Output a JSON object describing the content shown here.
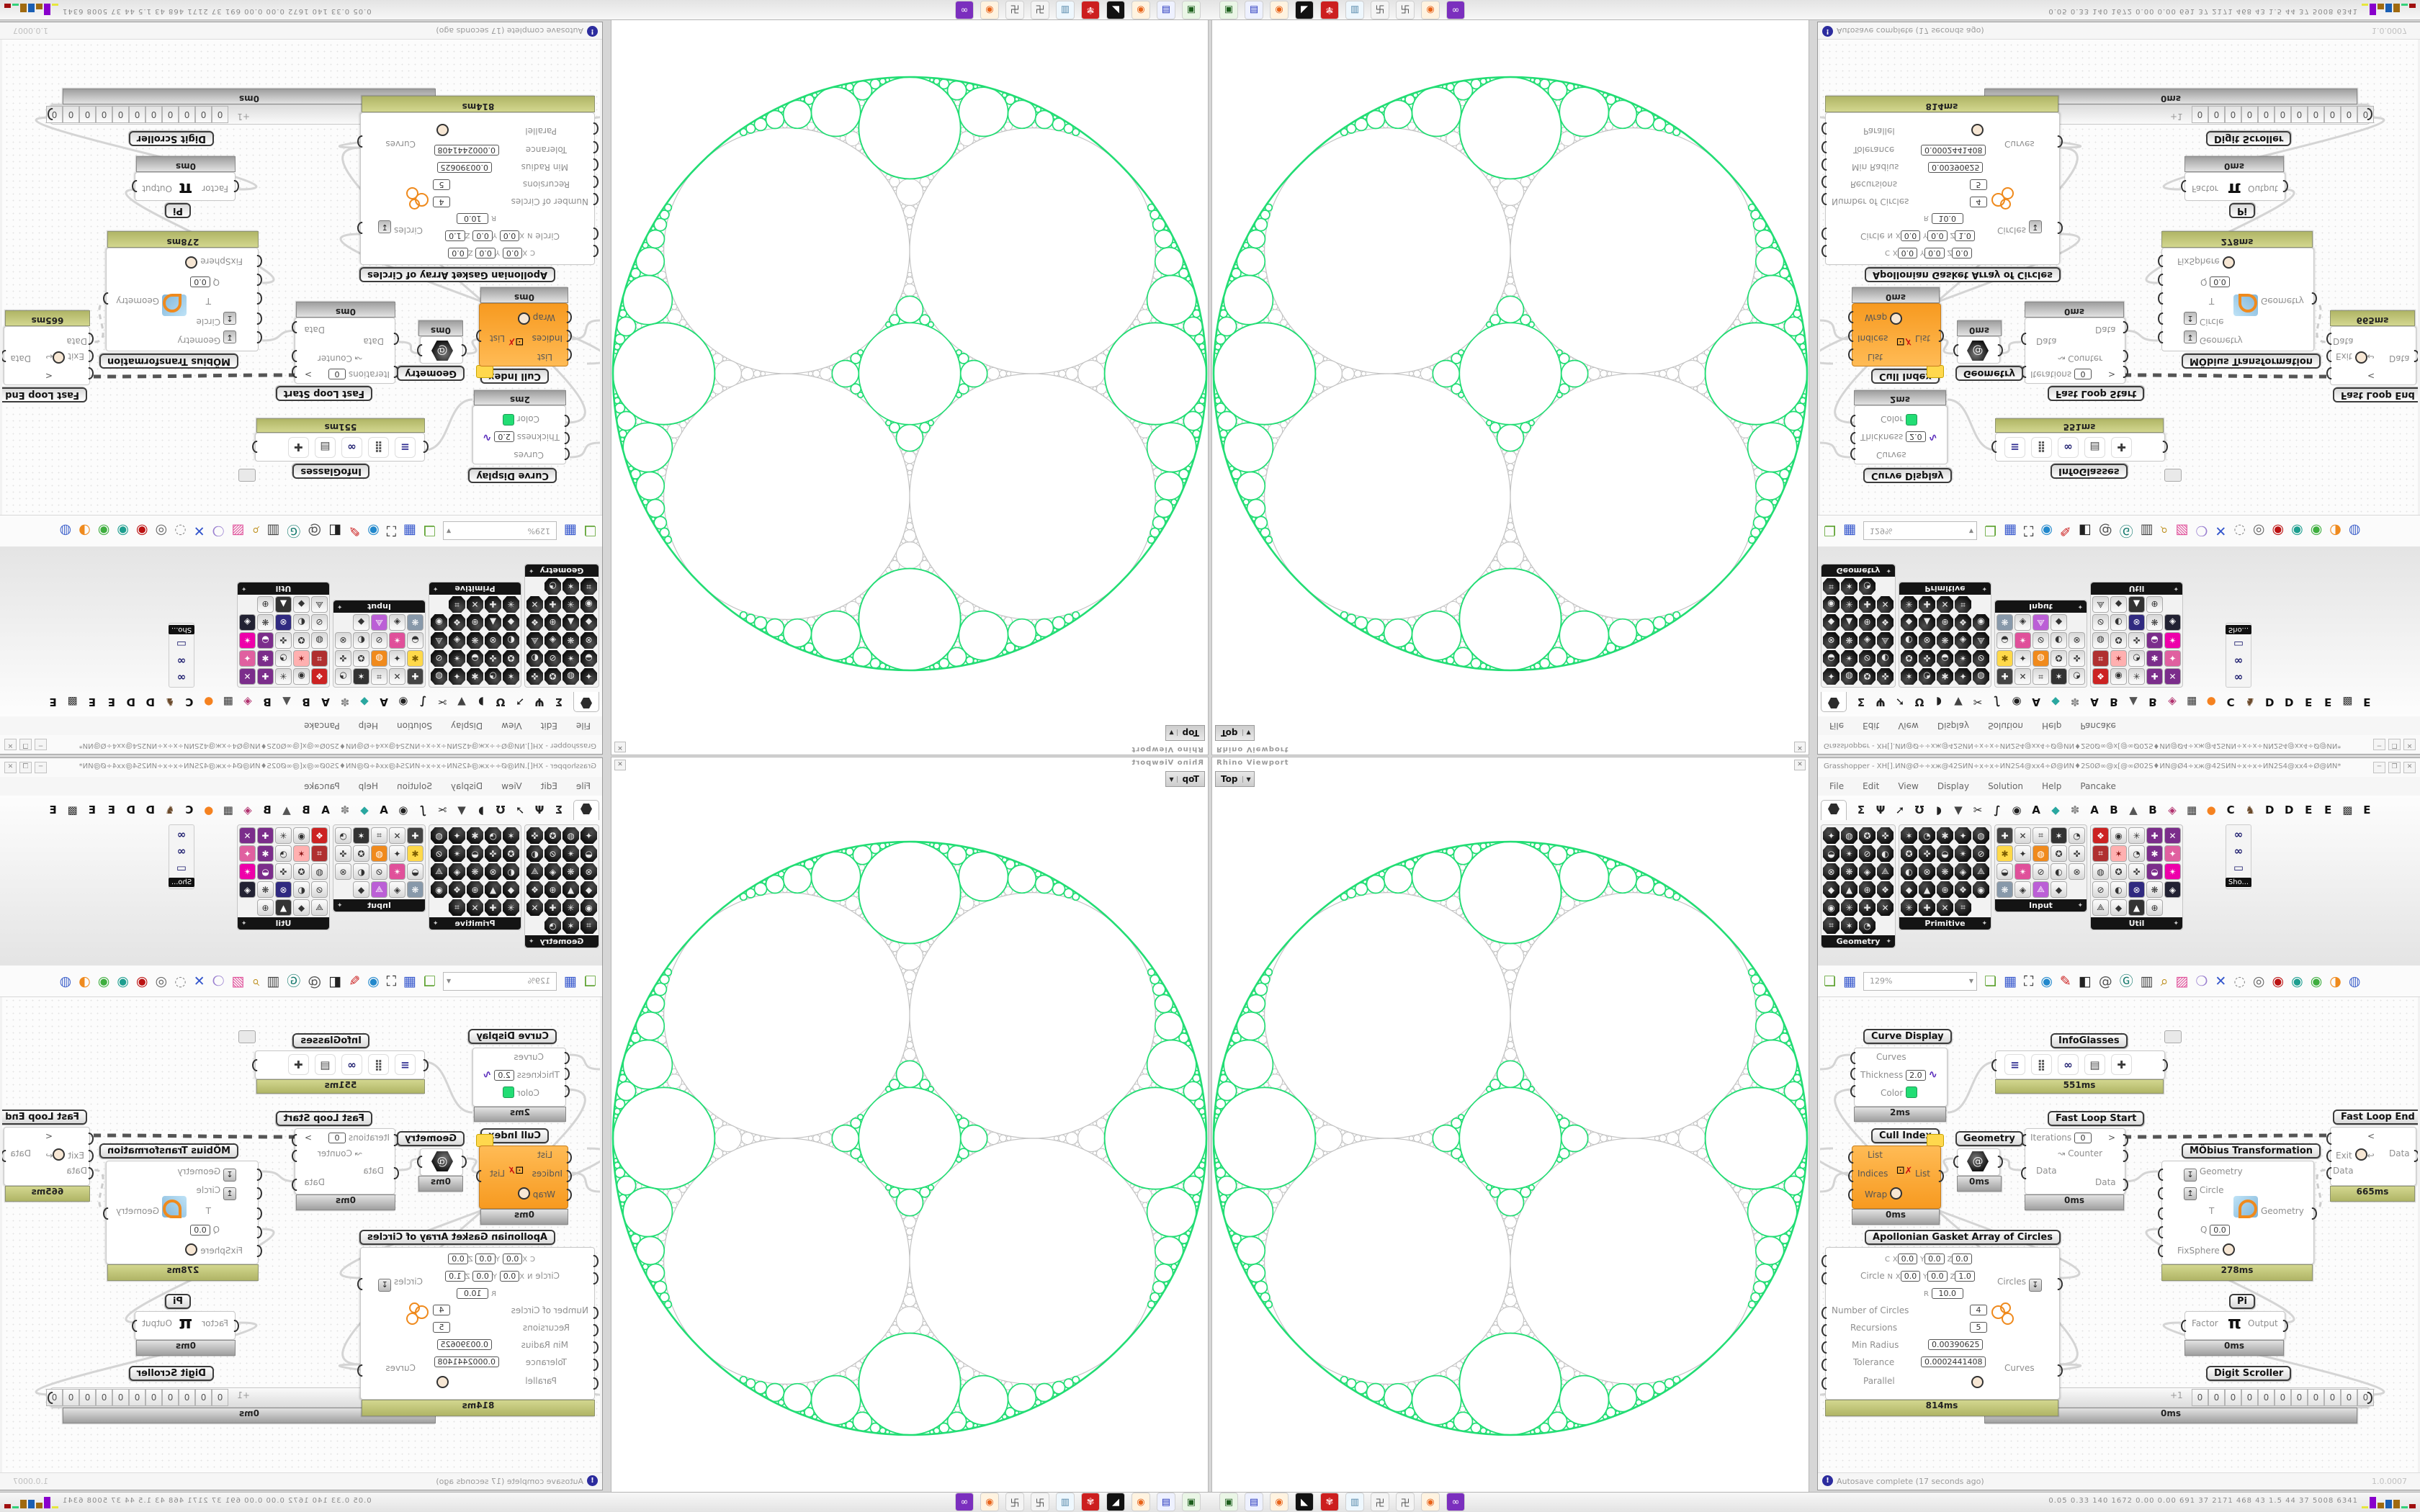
{
  "taskbar": {
    "icons": [
      {
        "name": "emulator",
        "glyph": "▣",
        "bg": "#eaf6e6",
        "fg": "#1c5f1c"
      },
      {
        "name": "save-floppy",
        "glyph": "▤",
        "bg": "#eef1ff",
        "fg": "#2233bb"
      },
      {
        "name": "firefox",
        "glyph": "◉",
        "bg": "#fff3e0",
        "fg": "#e8641a"
      },
      {
        "name": "inkcat",
        "glyph": "◣",
        "bg": "#111111",
        "fg": "#ffffff"
      },
      {
        "name": "gear-red",
        "glyph": "✾",
        "bg": "#cc1f1f",
        "fg": "#ffdddd"
      },
      {
        "name": "notepad",
        "glyph": "▥",
        "bg": "#eef7fd",
        "fg": "#5588aa"
      },
      {
        "name": "maze-1",
        "glyph": "卍",
        "bg": "#f4f4f4",
        "fg": "#555555"
      },
      {
        "name": "maze-2",
        "glyph": "卍",
        "bg": "#f4f4f4",
        "fg": "#555555"
      },
      {
        "name": "firefox-2",
        "glyph": "◉",
        "bg": "#fff3e0",
        "fg": "#e8641a"
      },
      {
        "name": "goggles-purple",
        "glyph": "∞",
        "bg": "#7b2fbe",
        "fg": "#ffffff"
      }
    ],
    "stats": "0.05 0.33  140  1672 0.00  0.00  691   37   2171  468   43   1.5   44   37   5008 6341",
    "graphs": [
      {
        "color": "#e6e63c",
        "h": 3
      },
      {
        "color": "#8800cc",
        "h": 16
      },
      {
        "color": "#a06a10",
        "h": 8
      },
      {
        "color": "#1a5fb4",
        "h": 12
      },
      {
        "color": "#a06a10",
        "h": 12
      },
      {
        "color": "#33d17a",
        "h": 3
      },
      {
        "color": "#a01010",
        "h": 6
      }
    ]
  },
  "rhino": {
    "title": "Rhino Viewport",
    "view_tab": "Top",
    "dropdown": "▼",
    "close": "✕"
  },
  "gasket": {
    "ring_count": 4,
    "recursions": 5,
    "green": "#22dd74",
    "gray": "#c4c4c4"
  },
  "gh": {
    "title": "Grasshopper - XH[].ИN@Ø÷÷хж@42SИN÷х÷х÷ИN2S4@хх4÷Ø@ИN♦2S0Ø∞@х[@∞Ø02S♦ИN@Ø4÷хж@42SИN÷х÷х÷ИN2S4@хх4÷Ø@ИN*",
    "buttons": {
      "minimize": "─",
      "maximize": "❐",
      "close": "✕"
    },
    "menu": [
      "File",
      "Edit",
      "View",
      "Display",
      "Solution",
      "Help",
      "Pancake"
    ],
    "tabs": [
      {
        "glyph": "",
        "color": "#222",
        "selected": true,
        "name": "params"
      },
      {
        "glyph": "Σ",
        "color": "#222"
      },
      {
        "glyph": "Ψ",
        "color": "#222"
      },
      {
        "glyph": "➚",
        "color": "#222"
      },
      {
        "glyph": "Ʊ",
        "color": "#222"
      },
      {
        "glyph": "◗",
        "color": "#222"
      },
      {
        "glyph": "▼",
        "color": "#444"
      },
      {
        "glyph": "✂",
        "color": "#222"
      },
      {
        "glyph": "∫",
        "color": "#222"
      },
      {
        "glyph": "◉",
        "color": "#222"
      },
      {
        "glyph": "A",
        "color": "#111"
      },
      {
        "glyph": "◆",
        "color": "#2aa7a0"
      },
      {
        "glyph": "✽",
        "color": "#888"
      },
      {
        "glyph": "A",
        "color": "#111"
      },
      {
        "glyph": "B",
        "color": "#111"
      },
      {
        "glyph": "▲",
        "color": "#555"
      },
      {
        "glyph": "B",
        "color": "#111"
      },
      {
        "glyph": "◈",
        "color": "#b0306e"
      },
      {
        "glyph": "▦",
        "color": "#333"
      },
      {
        "glyph": "●",
        "color": "#f58220"
      },
      {
        "glyph": "C",
        "color": "#111"
      },
      {
        "glyph": "♞",
        "color": "#6b4a2b"
      },
      {
        "glyph": "D",
        "color": "#111"
      },
      {
        "glyph": "D",
        "color": "#111"
      },
      {
        "glyph": "E",
        "color": "#111"
      },
      {
        "glyph": "E",
        "color": "#111"
      },
      {
        "glyph": "▩",
        "color": "#333"
      },
      {
        "glyph": "E",
        "color": "#111"
      }
    ],
    "palettes": [
      {
        "name": "Geometry",
        "cols": 4,
        "count": 23,
        "style": "dark",
        "accents": []
      },
      {
        "name": "Primitive",
        "cols": 5,
        "count": 24,
        "style": "dark",
        "accents": []
      },
      {
        "name": "Input",
        "cols": 5,
        "count": 19,
        "style": "light",
        "accents": [
          [
            0,
            "#444",
            "#fff"
          ],
          [
            3,
            "#333",
            "#fff"
          ],
          [
            5,
            "#ffd94a",
            "#7a5a00"
          ],
          [
            7,
            "#f08a1d",
            "#fff"
          ],
          [
            11,
            "#e0509a",
            "#fff"
          ],
          [
            15,
            "#8899aa",
            "#fff"
          ],
          [
            17,
            "#bb5fd6",
            "#fff"
          ]
        ]
      },
      {
        "name": "Util",
        "cols": 5,
        "count": 24,
        "style": "light",
        "accents": [
          [
            0,
            "#cc2222",
            "#fff"
          ],
          [
            3,
            "#7b2d8b",
            "#fff"
          ],
          [
            4,
            "#7b2d8b",
            "#fff"
          ],
          [
            5,
            "#b03030",
            "#fff"
          ],
          [
            6,
            "#ffb0b0",
            "#881111"
          ],
          [
            8,
            "#7b2d8b",
            "#fff"
          ],
          [
            9,
            "#e060a0",
            "#fff"
          ],
          [
            13,
            "#7b2d8b",
            "#fff"
          ],
          [
            14,
            "#e0a",
            " #fff"
          ],
          [
            17,
            "#302a80",
            "#fff"
          ],
          [
            19,
            "#223",
            "#fff"
          ],
          [
            22,
            "#333",
            "#fff"
          ]
        ]
      }
    ],
    "sho": {
      "label": "Sho...",
      "icons": [
        "∞",
        "∞",
        "▭"
      ]
    },
    "toolbar": {
      "zoom": "129%",
      "icons": [
        {
          "name": "open-folder",
          "glyph": "❏",
          "color": "#5aa02c"
        },
        {
          "name": "save-file",
          "glyph": "▦",
          "color": "#3355cc"
        },
        {
          "name": "zoom-extents",
          "glyph": "⛶",
          "color": "#222222"
        },
        {
          "name": "preview-eye",
          "glyph": "◉",
          "color": "#2288cc"
        },
        {
          "name": "sketch-pen",
          "glyph": "✎",
          "color": "#cc2222"
        },
        {
          "name": "box-display",
          "glyph": "◧",
          "color": "#222222"
        },
        {
          "name": "at-link",
          "glyph": "@",
          "color": "#555555"
        },
        {
          "name": "gha-loader",
          "glyph": "Ⓖ",
          "color": "#157a6e"
        },
        {
          "name": "image-window",
          "glyph": "▥",
          "color": "#444444"
        },
        {
          "name": "finder-magnifier",
          "glyph": "⌕",
          "color": "#b8860b"
        },
        {
          "name": "package-pink",
          "glyph": "▨",
          "color": "#e0509a"
        },
        {
          "name": "idea-bulb",
          "glyph": "❍",
          "color": "#9a7fd0"
        },
        {
          "name": "jump-wires",
          "glyph": "✕",
          "color": "#3355cc"
        },
        {
          "name": "preview-off",
          "glyph": "◌",
          "color": "#888888"
        },
        {
          "name": "preview-wire",
          "glyph": "◎",
          "color": "#666666"
        },
        {
          "name": "preview-shaded",
          "glyph": "◉",
          "color": "#bb1111"
        },
        {
          "name": "select-teal",
          "glyph": "◉",
          "color": "#1d9e8f"
        },
        {
          "name": "select-green",
          "glyph": "◉",
          "color": "#3fae3f"
        },
        {
          "name": "select-orange",
          "glyph": "◑",
          "color": "#ef8a1d"
        },
        {
          "name": "select-blue",
          "glyph": "◍",
          "color": "#4466cc"
        }
      ]
    },
    "status": {
      "text": "Autosave complete (17 seconds ago)",
      "icon": "!",
      "right": "1.0.0007"
    },
    "nodes": {
      "curve_display": {
        "label": "Curve Display",
        "in_curves": "Curves",
        "in_thickness": "Thickness",
        "thickness": "2.0",
        "in_color": "Color",
        "time": "2ms"
      },
      "infoglasses": {
        "label": "InfoGlasses",
        "time": "551ms",
        "icons": [
          "≡",
          "⣿",
          "∞",
          "▤",
          "✚"
        ]
      },
      "fast_loop_start": {
        "label": "Fast Loop Start",
        "in_iterations": "Iterations",
        "iterations": "0",
        "out_counter": "Counter",
        "in_data": "Data",
        "out_data": "Data",
        "gt": ">",
        "time": "0ms"
      },
      "fast_loop_end": {
        "label": "Fast Loop End",
        "lt": "<",
        "in_exit": "Exit",
        "out_data": "Data",
        "in_data": "Data",
        "time": "665ms"
      },
      "mobius": {
        "label": "MÖbius Transformation",
        "in_geometry": "Geometry",
        "in_circle": "Circle",
        "in_t": "T",
        "in_q": "Q",
        "q": "0.0",
        "in_fixsphere": "FixSphere",
        "out_geometry": "Geometry",
        "time": "278ms"
      },
      "pi": {
        "label": "Pi",
        "in_factor": "Factor",
        "sym": "π",
        "out_output": "Output",
        "time": "0ms"
      },
      "digit_scroller": {
        "label": "Digit Scroller",
        "plus": "+1",
        "digits": [
          "0",
          "0",
          "0",
          "0",
          "0",
          "0",
          "0",
          "0",
          "0",
          "0",
          "0"
        ],
        "time": "0ms"
      },
      "cull_index": {
        "label": "Cull Index",
        "in_list": "List",
        "in_indices": "Indices",
        "out_list": "List",
        "in_wrap": "Wrap",
        "time": "0ms"
      },
      "geometry": {
        "label": "Geometry",
        "time": "0ms"
      },
      "apollonian": {
        "label": "Apollonian Gasket Array of Circles",
        "c_label": "C",
        "n_label": "N",
        "x": "X",
        "y": "Y",
        "z": "Z",
        "r_label": "R",
        "circle_label": "Circle",
        "c_vals": [
          "0.0",
          "0.0",
          "0.0"
        ],
        "n_vals": [
          "0.0",
          "0.0",
          "1.0"
        ],
        "r_val": "10.0",
        "num_label": "Number of Circles",
        "num": "4",
        "rec_label": "Recursions",
        "rec": "5",
        "minr_label": "Min Radius",
        "minr": "0.00390625",
        "tol_label": "Tolerance",
        "tol": "0.0002441408",
        "par_label": "Parallel",
        "out_circles": "Circles",
        "out_curves": "Curves",
        "time": "814ms"
      }
    }
  }
}
